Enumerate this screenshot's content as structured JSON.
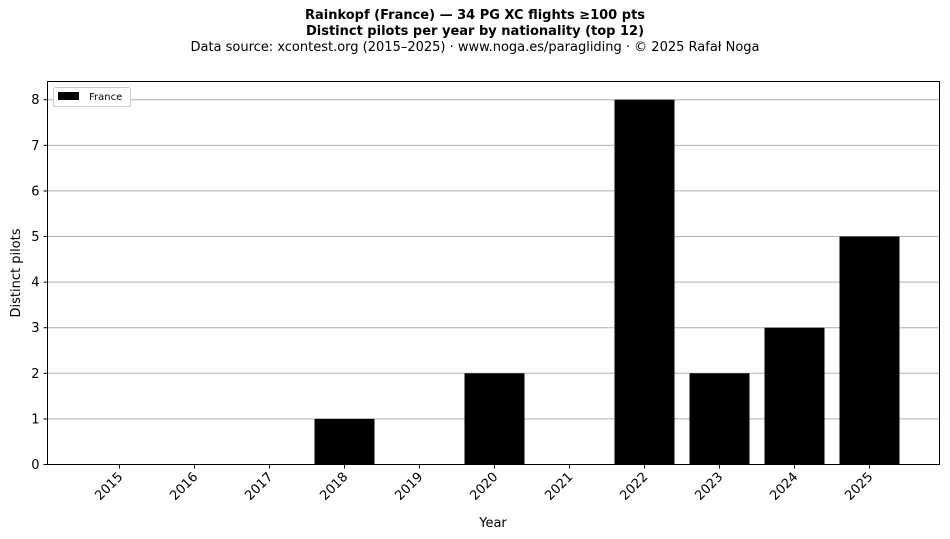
{
  "chart_data": {
    "type": "bar",
    "title": "Rainkopf (France)  —  34 PG XC flights ≥100 pts",
    "subtitle": "Distinct pilots per year by nationality (top 12)",
    "source": "Data source: xcontest.org (2015–2025)  ·  www.noga.es/paragliding  ·  © 2025 Rafał Noga",
    "xlabel": "Year",
    "ylabel": "Distinct pilots",
    "categories": [
      "2015",
      "2016",
      "2017",
      "2018",
      "2019",
      "2020",
      "2021",
      "2022",
      "2023",
      "2024",
      "2025"
    ],
    "series": [
      {
        "name": "France",
        "color": "#000000",
        "values": [
          0,
          0,
          0,
          1,
          0,
          2,
          0,
          8,
          2,
          3,
          5
        ]
      }
    ],
    "ylim": [
      0,
      8.4
    ],
    "yticks": [
      0,
      1,
      2,
      3,
      4,
      5,
      6,
      7,
      8
    ],
    "grid": "y",
    "legend": "top-left"
  }
}
